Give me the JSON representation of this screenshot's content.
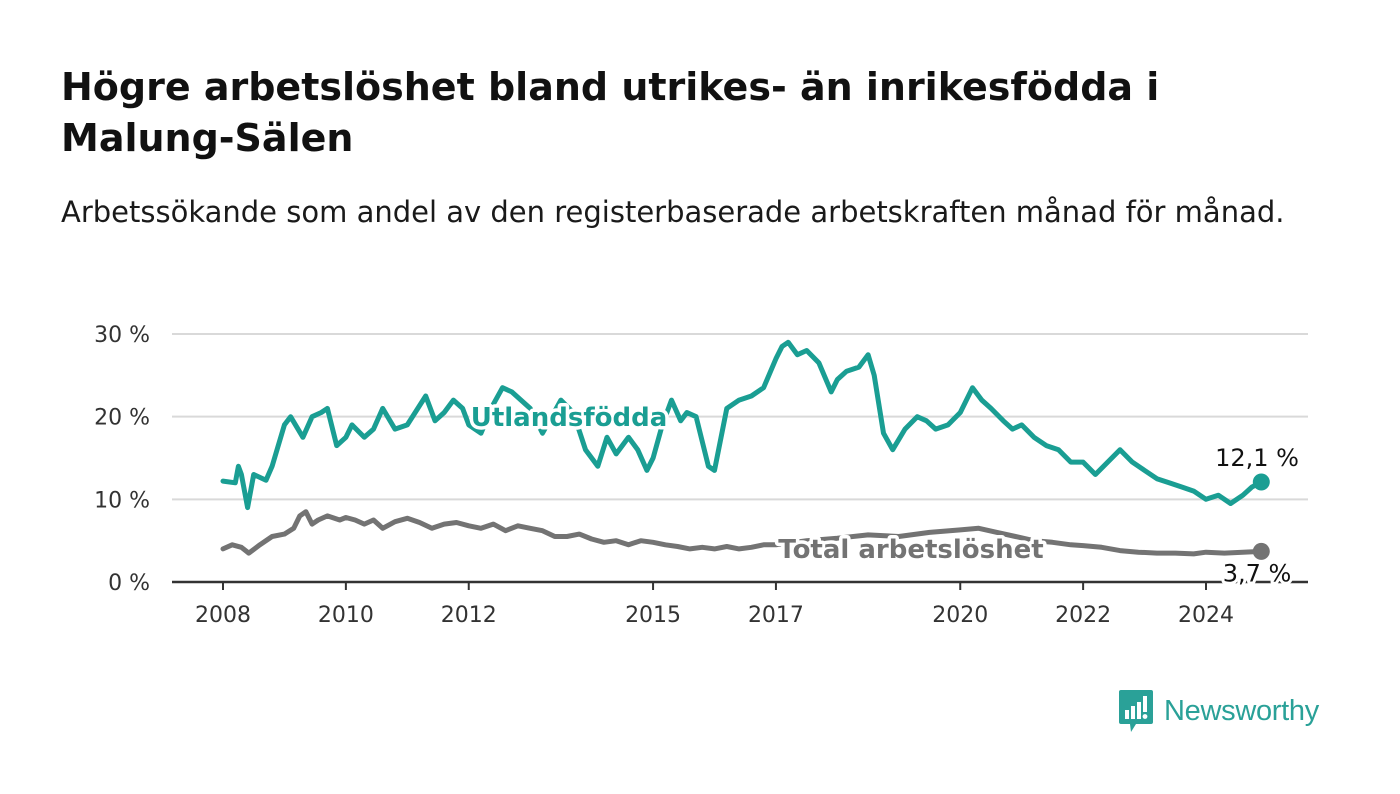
{
  "title": "Högre arbetslöshet bland utrikes- än inrikesfödda i Malung-Sälen",
  "subtitle": "Arbetssökande som andel av den registerbaserade arbetskraften månad för månad.",
  "brand": {
    "name": "Newsworthy",
    "color": "#2aa198"
  },
  "chart_data": {
    "type": "line",
    "ylim": [
      0,
      30
    ],
    "yticks": [
      {
        "value": 0,
        "label": "0 %"
      },
      {
        "value": 10,
        "label": "10 %"
      },
      {
        "value": 20,
        "label": "20 %"
      },
      {
        "value": 30,
        "label": "30 %"
      }
    ],
    "xlim": [
      2008.0,
      2025.7
    ],
    "xticks": [
      {
        "value": 2008,
        "label": "2008"
      },
      {
        "value": 2010,
        "label": "2010"
      },
      {
        "value": 2012,
        "label": "2012"
      },
      {
        "value": 2015,
        "label": "2015"
      },
      {
        "value": 2017,
        "label": "2017"
      },
      {
        "value": 2020,
        "label": "2020"
      },
      {
        "value": 2022,
        "label": "2022"
      },
      {
        "value": 2024,
        "label": "2024"
      }
    ],
    "grid": true,
    "series": [
      {
        "name": "Utlandsfödda",
        "color": "#1a9e93",
        "end_label": "12,1 %",
        "end_value": 12.1,
        "x": [
          2008.0,
          2008.2,
          2008.25,
          2008.3,
          2008.4,
          2008.5,
          2008.7,
          2008.8,
          2009.0,
          2009.1,
          2009.3,
          2009.45,
          2009.6,
          2009.7,
          2009.85,
          2010.0,
          2010.1,
          2010.3,
          2010.45,
          2010.6,
          2010.8,
          2011.0,
          2011.3,
          2011.45,
          2011.6,
          2011.75,
          2011.9,
          2012.0,
          2012.2,
          2012.4,
          2012.55,
          2012.7,
          2012.85,
          2013.0,
          2013.2,
          2013.35,
          2013.5,
          2013.7,
          2013.9,
          2014.1,
          2014.25,
          2014.4,
          2014.6,
          2014.75,
          2014.9,
          2015.0,
          2015.15,
          2015.3,
          2015.45,
          2015.55,
          2015.7,
          2015.9,
          2016.0,
          2016.2,
          2016.4,
          2016.6,
          2016.8,
          2017.0,
          2017.1,
          2017.2,
          2017.35,
          2017.5,
          2017.7,
          2017.9,
          2018.0,
          2018.15,
          2018.35,
          2018.5,
          2018.6,
          2018.75,
          2018.9,
          2019.1,
          2019.3,
          2019.45,
          2019.6,
          2019.8,
          2020.0,
          2020.2,
          2020.35,
          2020.5,
          2020.7,
          2020.85,
          2021.0,
          2021.2,
          2021.4,
          2021.6,
          2021.8,
          2022.0,
          2022.2,
          2022.4,
          2022.6,
          2022.8,
          2023.0,
          2023.2,
          2023.4,
          2023.6,
          2023.8,
          2024.0,
          2024.2,
          2024.4,
          2024.6,
          2024.75,
          2024.9
        ],
        "values": [
          12.2,
          12.0,
          14.0,
          13.0,
          9.0,
          13.0,
          12.3,
          14.0,
          19.0,
          20.0,
          17.5,
          20.0,
          20.5,
          21.0,
          16.5,
          17.5,
          19.0,
          17.5,
          18.5,
          21.0,
          18.5,
          19.0,
          22.5,
          19.5,
          20.5,
          22.0,
          21.0,
          19.0,
          18.0,
          21.5,
          23.5,
          23.0,
          22.0,
          21.0,
          18.0,
          20.0,
          22.0,
          20.5,
          16.0,
          14.0,
          17.5,
          15.5,
          17.5,
          16.0,
          13.5,
          15.0,
          19.0,
          22.0,
          19.5,
          20.5,
          20.0,
          14.0,
          13.5,
          21.0,
          22.0,
          22.5,
          23.5,
          27.0,
          28.5,
          29.0,
          27.5,
          28.0,
          26.5,
          23.0,
          24.5,
          25.5,
          26.0,
          27.5,
          25.0,
          18.0,
          16.0,
          18.5,
          20.0,
          19.5,
          18.5,
          19.0,
          20.5,
          23.5,
          22.0,
          21.0,
          19.5,
          18.5,
          19.0,
          17.5,
          16.5,
          16.0,
          14.5,
          14.5,
          13.0,
          14.5,
          16.0,
          14.5,
          13.5,
          12.5,
          12.0,
          11.5,
          11.0,
          10.0,
          10.5,
          9.5,
          10.5,
          11.5,
          12.1
        ]
      },
      {
        "name": "Total arbetslöshet",
        "color": "#737373",
        "end_label": "3,7 %",
        "end_value": 3.7,
        "x": [
          2008.0,
          2008.15,
          2008.3,
          2008.42,
          2008.6,
          2008.8,
          2009.0,
          2009.15,
          2009.25,
          2009.35,
          2009.45,
          2009.55,
          2009.7,
          2009.9,
          2010.0,
          2010.15,
          2010.3,
          2010.45,
          2010.6,
          2010.8,
          2011.0,
          2011.2,
          2011.4,
          2011.6,
          2011.8,
          2012.0,
          2012.2,
          2012.4,
          2012.6,
          2012.8,
          2013.0,
          2013.2,
          2013.4,
          2013.6,
          2013.8,
          2014.0,
          2014.2,
          2014.4,
          2014.6,
          2014.8,
          2015.0,
          2015.2,
          2015.4,
          2015.6,
          2015.8,
          2016.0,
          2016.2,
          2016.4,
          2016.6,
          2016.8,
          2017.0,
          2017.5,
          2018.0,
          2018.5,
          2019.0,
          2019.5,
          2020.0,
          2020.3,
          2020.6,
          2020.9,
          2021.2,
          2021.5,
          2021.8,
          2022.0,
          2022.3,
          2022.6,
          2022.9,
          2023.2,
          2023.5,
          2023.8,
          2024.0,
          2024.3,
          2024.6,
          2024.9
        ],
        "values": [
          4.0,
          4.5,
          4.2,
          3.5,
          4.5,
          5.5,
          5.8,
          6.5,
          8.0,
          8.5,
          7.0,
          7.5,
          8.0,
          7.5,
          7.8,
          7.5,
          7.0,
          7.5,
          6.5,
          7.3,
          7.7,
          7.2,
          6.5,
          7.0,
          7.2,
          6.8,
          6.5,
          7.0,
          6.2,
          6.8,
          6.5,
          6.2,
          5.5,
          5.5,
          5.8,
          5.2,
          4.8,
          5.0,
          4.5,
          5.0,
          4.8,
          4.5,
          4.3,
          4.0,
          4.2,
          4.0,
          4.3,
          4.0,
          4.2,
          4.5,
          4.5,
          5.0,
          5.3,
          5.7,
          5.5,
          6.0,
          6.3,
          6.5,
          6.0,
          5.5,
          5.0,
          4.8,
          4.5,
          4.4,
          4.2,
          3.8,
          3.6,
          3.5,
          3.5,
          3.4,
          3.6,
          3.5,
          3.6,
          3.7
        ]
      }
    ]
  }
}
